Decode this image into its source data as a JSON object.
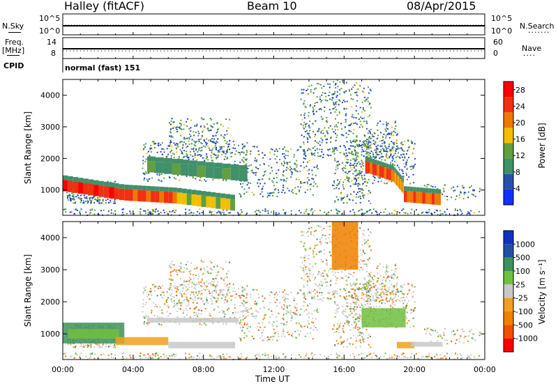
{
  "header": {
    "radar": "Halley (fitACF)",
    "beam": "Beam 10",
    "date": "08/Apr/2015"
  },
  "left_labels": {
    "nsky": "N.Sky",
    "freq": "Freq.",
    "mhz": "[MHz]",
    "cpid": "CPID"
  },
  "right_labels": {
    "nsearch": "N.Search",
    "nave": "Nave"
  },
  "strip_ticks": {
    "nsky_top": "10^5",
    "nsky_bottom": "10^0",
    "nsearch_top": "10^5",
    "nsearch_bottom": "10^0",
    "freq_top": "14",
    "freq_bottom": "8",
    "nave_top": "60",
    "nave_bottom": "0"
  },
  "cpid_text": "normal (fast) 151",
  "colors": {
    "power": [
      "#1030ff",
      "#2850a8",
      "#40906a",
      "#60a040",
      "#f0c000",
      "#f07800",
      "#f03010",
      "#ff0000"
    ],
    "velocity": [
      "#ff0000",
      "#f05000",
      "#f08000",
      "#f0a020",
      "#c8c8c8",
      "#70c040",
      "#40905a",
      "#2050a0",
      "#1030c0"
    ]
  },
  "chart_data": [
    {
      "type": "heatmap",
      "title": "",
      "xlabel": "",
      "ylabel": "Slant Range [km]",
      "xlim": [
        "00:00",
        "24:00"
      ],
      "ylim": [
        200,
        4500
      ],
      "y_ticks": [
        "1000",
        "2000",
        "3000",
        "4000"
      ],
      "colorbar": {
        "label": "Power [dB]",
        "ticks": [
          "4",
          "8",
          "12",
          "16",
          "20",
          "24",
          "28"
        ],
        "range": [
          0,
          30
        ]
      },
      "series": [
        {
          "start_h": 0.0,
          "end_h": 3.5,
          "range_start_km": 1150,
          "range_end_km": 850,
          "level": 28
        },
        {
          "start_h": 3.5,
          "end_h": 6.5,
          "range_start_km": 850,
          "range_end_km": 750,
          "level": 26
        },
        {
          "start_h": 6.5,
          "end_h": 9.8,
          "range_start_km": 750,
          "range_end_km": 520,
          "level": 18
        },
        {
          "start_h": 4.8,
          "end_h": 10.5,
          "range_start_km": 1750,
          "range_end_km": 1450,
          "level": 12
        },
        {
          "start_h": 17.2,
          "end_h": 18.8,
          "range_start_km": 1750,
          "range_end_km": 1450,
          "level": 26
        },
        {
          "start_h": 18.8,
          "end_h": 19.4,
          "range_start_km": 1450,
          "range_end_km": 1050,
          "level": 22
        },
        {
          "start_h": 19.4,
          "end_h": 21.5,
          "range_start_km": 800,
          "range_end_km": 700,
          "level": 24
        }
      ]
    },
    {
      "type": "heatmap",
      "title": "",
      "xlabel": "Time UT",
      "ylabel": "Slant Range [km]",
      "xlim": [
        "00:00",
        "24:00"
      ],
      "ylim": [
        200,
        4500
      ],
      "x_ticks": [
        "00:00",
        "04:00",
        "08:00",
        "12:00",
        "16:00",
        "20:00",
        "00:00"
      ],
      "y_ticks": [
        "1000",
        "2000",
        "3000",
        "4000"
      ],
      "colorbar": {
        "label": "Velocity [m s⁻¹]",
        "ticks": [
          "1000",
          "500",
          "100",
          "25",
          "-25",
          "-100",
          "-500",
          "-1000"
        ]
      }
    }
  ]
}
